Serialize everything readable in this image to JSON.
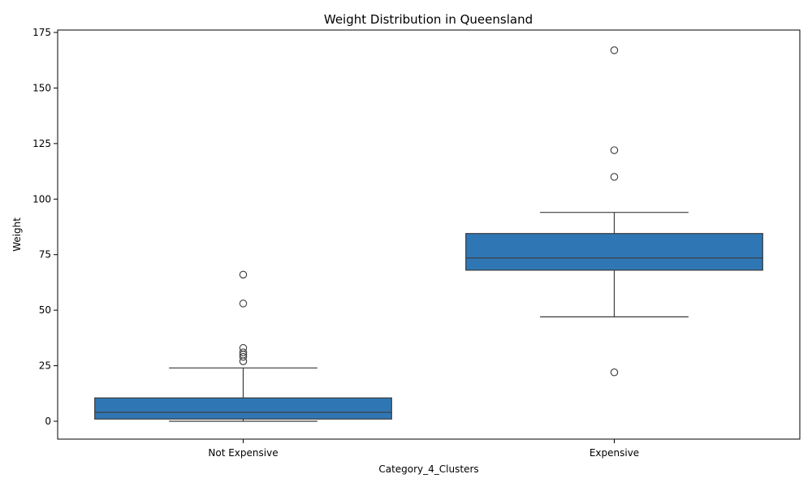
{
  "chart_data": {
    "type": "box",
    "title": "Weight Distribution in Queensland",
    "xlabel": "Category_4_Clusters",
    "ylabel": "Weight",
    "ylim": [
      -8,
      176
    ],
    "yticks": [
      0,
      25,
      50,
      75,
      100,
      125,
      150,
      175
    ],
    "grid": false,
    "legend": "none",
    "box_color": "#2f77b4",
    "line_color": "#3a3a3a",
    "categories": [
      "Not Expensive",
      "Expensive"
    ],
    "boxes": [
      {
        "category": "Not Expensive",
        "whisker_low": 0,
        "q1": 1,
        "median": 4,
        "q3": 10.5,
        "whisker_high": 24,
        "outliers": [
          27,
          29,
          30,
          31,
          33,
          53,
          66
        ]
      },
      {
        "category": "Expensive",
        "whisker_low": 47,
        "q1": 68,
        "median": 73.5,
        "q3": 84.5,
        "whisker_high": 94,
        "outliers": [
          22,
          110,
          122,
          167
        ]
      }
    ]
  }
}
